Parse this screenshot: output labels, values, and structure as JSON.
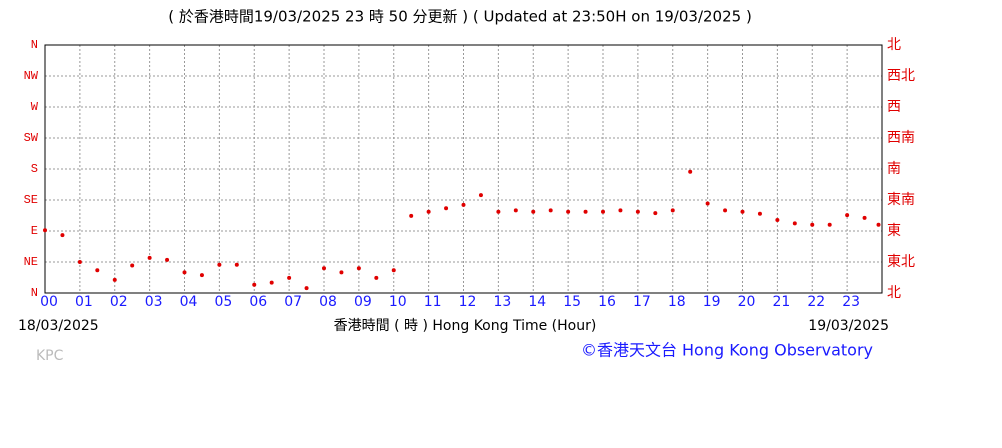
{
  "chart_data": {
    "type": "scatter",
    "title": "( 於香港時間19/03/2025 23 時 50 分更新 ) ( Updated at 23:50H on 19/03/2025 )",
    "x_label": "香港時間 ( 時 )  Hong Kong Time (Hour)",
    "start_date": "18/03/2025",
    "end_date": "19/03/2025",
    "station": "KPC",
    "credit": "©香港天文台 Hong Kong Observatory",
    "x": [
      0,
      0.5,
      1,
      1.5,
      2,
      2.5,
      3,
      3.5,
      4,
      4.5,
      5,
      5.5,
      6,
      6.5,
      7,
      7.5,
      8,
      8.5,
      9,
      9.5,
      10,
      10.5,
      11,
      11.5,
      12,
      12.5,
      13,
      13.5,
      14,
      14.5,
      15,
      15.5,
      16,
      16.5,
      17,
      17.5,
      18,
      18.5,
      19,
      19.5,
      20,
      20.5,
      21,
      21.5,
      22,
      22.5,
      23,
      23.5,
      23.9
    ],
    "series": [
      {
        "color": "#e00000",
        "values": [
          91,
          84,
          45,
          33,
          19,
          40,
          51,
          48,
          30,
          26,
          41,
          41,
          12,
          15,
          22,
          7,
          36,
          30,
          36,
          22,
          33,
          112,
          118,
          123,
          128,
          142,
          118,
          120,
          118,
          120,
          118,
          118,
          118,
          120,
          118,
          116,
          120,
          176,
          130,
          120,
          118,
          115,
          106,
          101,
          99,
          99,
          113,
          109,
          99
        ]
      }
    ],
    "xlim": [
      0,
      24
    ],
    "xticks": [
      {
        "value": 0,
        "label": "00"
      },
      {
        "value": 1,
        "label": "01"
      },
      {
        "value": 2,
        "label": "02"
      },
      {
        "value": 3,
        "label": "03"
      },
      {
        "value": 4,
        "label": "04"
      },
      {
        "value": 5,
        "label": "05"
      },
      {
        "value": 6,
        "label": "06"
      },
      {
        "value": 7,
        "label": "07"
      },
      {
        "value": 8,
        "label": "08"
      },
      {
        "value": 9,
        "label": "09"
      },
      {
        "value": 10,
        "label": "10"
      },
      {
        "value": 11,
        "label": "11"
      },
      {
        "value": 12,
        "label": "12"
      },
      {
        "value": 13,
        "label": "13"
      },
      {
        "value": 14,
        "label": "14"
      },
      {
        "value": 15,
        "label": "15"
      },
      {
        "value": 16,
        "label": "16"
      },
      {
        "value": 17,
        "label": "17"
      },
      {
        "value": 18,
        "label": "18"
      },
      {
        "value": 19,
        "label": "19"
      },
      {
        "value": 20,
        "label": "20"
      },
      {
        "value": 21,
        "label": "21"
      },
      {
        "value": 22,
        "label": "22"
      },
      {
        "value": 23,
        "label": "23"
      }
    ],
    "ylim": [
      0,
      360
    ],
    "yticks": [
      {
        "value": 0,
        "label": "N"
      },
      {
        "value": 45,
        "label": "NE"
      },
      {
        "value": 90,
        "label": "E"
      },
      {
        "value": 135,
        "label": "SE"
      },
      {
        "value": 180,
        "label": "S"
      },
      {
        "value": 225,
        "label": "SW"
      },
      {
        "value": 270,
        "label": "W"
      },
      {
        "value": 315,
        "label": "NW"
      },
      {
        "value": 360,
        "label": "N"
      }
    ],
    "y2lim": [
      0,
      360
    ],
    "y2ticks": [
      {
        "value": 0,
        "label": "北"
      },
      {
        "value": 45,
        "label": "東北"
      },
      {
        "value": 90,
        "label": "東"
      },
      {
        "value": 135,
        "label": "東南"
      },
      {
        "value": 180,
        "label": "南"
      },
      {
        "value": 225,
        "label": "西南"
      },
      {
        "value": 270,
        "label": "西"
      },
      {
        "value": 315,
        "label": "西北"
      },
      {
        "value": 360,
        "label": "北"
      }
    ],
    "grid": true
  }
}
